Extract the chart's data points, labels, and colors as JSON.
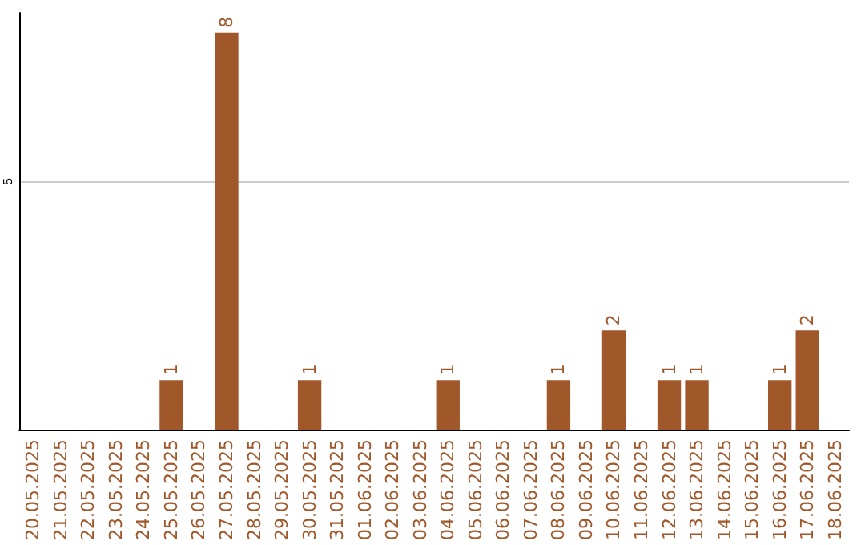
{
  "chart_data": {
    "type": "bar",
    "categories": [
      "20.05.2025",
      "21.05.2025",
      "22.05.2025",
      "23.05.2025",
      "24.05.2025",
      "25.05.2025",
      "26.05.2025",
      "27.05.2025",
      "28.05.2025",
      "29.05.2025",
      "30.05.2025",
      "31.05.2025",
      "01.06.2025",
      "02.06.2025",
      "03.06.2025",
      "04.06.2025",
      "05.06.2025",
      "06.06.2025",
      "07.06.2025",
      "08.06.2025",
      "09.06.2025",
      "10.06.2025",
      "11.06.2025",
      "12.06.2025",
      "13.06.2025",
      "14.06.2025",
      "15.06.2025",
      "16.06.2025",
      "17.06.2025",
      "18.06.2025"
    ],
    "values": [
      0,
      0,
      0,
      0,
      0,
      1,
      0,
      8,
      0,
      0,
      1,
      0,
      0,
      0,
      0,
      1,
      0,
      0,
      0,
      1,
      0,
      2,
      0,
      1,
      1,
      0,
      0,
      1,
      2,
      0
    ],
    "value_labels": [
      null,
      null,
      null,
      null,
      null,
      "1",
      null,
      "8",
      null,
      null,
      "1",
      null,
      null,
      null,
      null,
      "1",
      null,
      null,
      null,
      "1",
      null,
      "2",
      null,
      "1",
      "1",
      null,
      null,
      "1",
      "2",
      null
    ],
    "color": "#a0572a",
    "ylim": [
      0,
      8.4
    ],
    "yticks": [
      5
    ],
    "grid": "y"
  }
}
